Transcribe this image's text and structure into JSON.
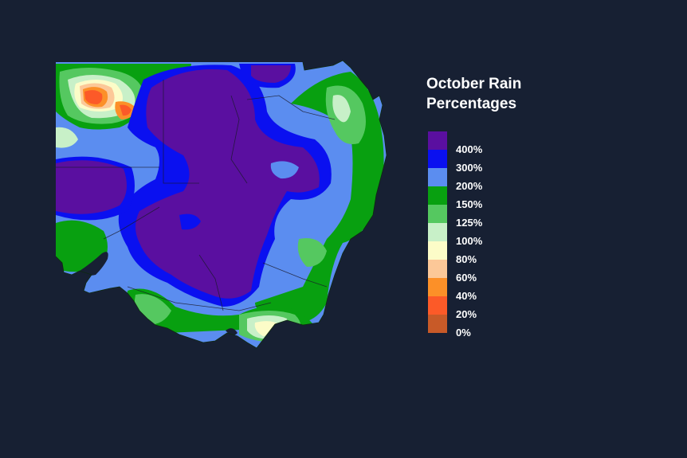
{
  "legend": {
    "title_line1": "October Rain",
    "title_line2": "Percentages",
    "items": [
      {
        "label": "400%",
        "color": "#5a0fa0"
      },
      {
        "label": "300%",
        "color": "#0a10f0"
      },
      {
        "label": "200%",
        "color": "#5b8df0"
      },
      {
        "label": "150%",
        "color": "#08a010"
      },
      {
        "label": "125%",
        "color": "#55c860"
      },
      {
        "label": "100%",
        "color": "#c8f0c8"
      },
      {
        "label": "80%",
        "color": "#fcfcc8"
      },
      {
        "label": "60%",
        "color": "#fcc898"
      },
      {
        "label": "40%",
        "color": "#fc9028"
      },
      {
        "label": "20%",
        "color": "#fc5a28"
      },
      {
        "label": "0%",
        "color": "#c85a28"
      }
    ]
  }
}
